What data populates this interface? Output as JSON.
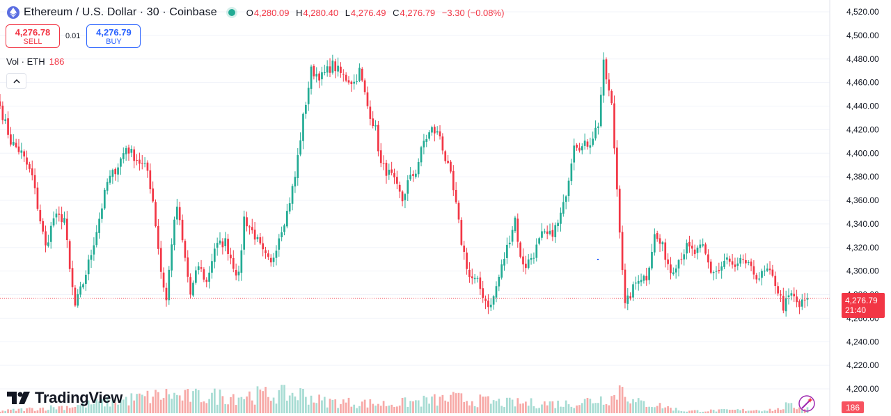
{
  "header": {
    "symbol": "Ethereum / U.S. Dollar · 30 · Coinbase",
    "ohlc": {
      "o_label": "O",
      "o": "4,280.09",
      "h_label": "H",
      "h": "4,280.40",
      "l_label": "L",
      "l": "4,276.49",
      "c_label": "C",
      "c": "4,276.79",
      "change": "−3.30 (−0.08%)"
    }
  },
  "trade": {
    "sell_price": "4,276.78",
    "sell_label": "SELL",
    "spread": "0.01",
    "buy_price": "4,276.79",
    "buy_label": "BUY"
  },
  "volume_legend": {
    "label": "Vol · ETH",
    "value": "186"
  },
  "brand": {
    "name": "TradingView"
  },
  "price_line": {
    "price": "4,276.79",
    "countdown": "21:40"
  },
  "volume_label": "186",
  "colors": {
    "up": "#22ab94",
    "down": "#f23645",
    "vol_up": "#a7dcd3",
    "vol_down": "#f7a9a7",
    "grid": "#f0f3fa"
  },
  "icons": [
    "ethereum-icon",
    "live-dot-icon",
    "chevron-up-icon",
    "tradingview-logo-icon",
    "magic-wand-icon"
  ],
  "chart_data": {
    "type": "candlestick",
    "interval": "30",
    "y_ticks": [
      "4,520.00",
      "4,500.00",
      "4,480.00",
      "4,460.00",
      "4,440.00",
      "4,420.00",
      "4,400.00",
      "4,380.00",
      "4,360.00",
      "4,340.00",
      "4,320.00",
      "4,300.00",
      "4,280.00",
      "4,260.00",
      "4,240.00",
      "4,220.00",
      "4,200.00"
    ],
    "ylim": [
      4196,
      4524
    ],
    "grid": true,
    "current_price": 4276.79,
    "close_anchors": [
      [
        0,
        4440
      ],
      [
        4,
        4410
      ],
      [
        8,
        4400
      ],
      [
        12,
        4380
      ],
      [
        14,
        4355
      ],
      [
        17,
        4320
      ],
      [
        20,
        4345
      ],
      [
        24,
        4345
      ],
      [
        26,
        4300
      ],
      [
        28,
        4270
      ],
      [
        31,
        4290
      ],
      [
        34,
        4315
      ],
      [
        37,
        4345
      ],
      [
        40,
        4375
      ],
      [
        44,
        4390
      ],
      [
        47,
        4405
      ],
      [
        51,
        4395
      ],
      [
        55,
        4385
      ],
      [
        57,
        4360
      ],
      [
        60,
        4300
      ],
      [
        62,
        4275
      ],
      [
        64,
        4325
      ],
      [
        66,
        4355
      ],
      [
        69,
        4310
      ],
      [
        71,
        4280
      ],
      [
        74,
        4305
      ],
      [
        77,
        4290
      ],
      [
        80,
        4320
      ],
      [
        84,
        4325
      ],
      [
        87,
        4305
      ],
      [
        89,
        4295
      ],
      [
        91,
        4345
      ],
      [
        95,
        4330
      ],
      [
        98,
        4315
      ],
      [
        101,
        4305
      ],
      [
        104,
        4330
      ],
      [
        107,
        4350
      ],
      [
        110,
        4380
      ],
      [
        113,
        4430
      ],
      [
        116,
        4470
      ],
      [
        120,
        4465
      ],
      [
        124,
        4475
      ],
      [
        128,
        4465
      ],
      [
        132,
        4460
      ],
      [
        134,
        4470
      ],
      [
        137,
        4440
      ],
      [
        140,
        4420
      ],
      [
        142,
        4390
      ],
      [
        146,
        4380
      ],
      [
        150,
        4360
      ],
      [
        152,
        4375
      ],
      [
        155,
        4385
      ],
      [
        158,
        4410
      ],
      [
        161,
        4420
      ],
      [
        164,
        4415
      ],
      [
        166,
        4395
      ],
      [
        168,
        4380
      ],
      [
        170,
        4355
      ],
      [
        172,
        4325
      ],
      [
        175,
        4295
      ],
      [
        178,
        4290
      ],
      [
        181,
        4275
      ],
      [
        183,
        4270
      ],
      [
        186,
        4295
      ],
      [
        189,
        4320
      ],
      [
        192,
        4345
      ],
      [
        194,
        4310
      ],
      [
        196,
        4305
      ],
      [
        199,
        4315
      ],
      [
        202,
        4330
      ],
      [
        205,
        4330
      ],
      [
        208,
        4340
      ],
      [
        210,
        4355
      ],
      [
        212,
        4380
      ],
      [
        214,
        4410
      ],
      [
        217,
        4405
      ],
      [
        220,
        4410
      ],
      [
        223,
        4425
      ],
      [
        225,
        4475
      ],
      [
        228,
        4440
      ],
      [
        230,
        4370
      ],
      [
        233,
        4270
      ],
      [
        235,
        4280
      ],
      [
        238,
        4295
      ],
      [
        241,
        4295
      ],
      [
        244,
        4330
      ],
      [
        247,
        4320
      ],
      [
        250,
        4300
      ],
      [
        253,
        4310
      ],
      [
        256,
        4320
      ],
      [
        259,
        4315
      ],
      [
        262,
        4320
      ],
      [
        265,
        4300
      ],
      [
        268,
        4300
      ],
      [
        271,
        4310
      ],
      [
        274,
        4300
      ],
      [
        277,
        4310
      ],
      [
        280,
        4300
      ],
      [
        283,
        4295
      ],
      [
        286,
        4300
      ],
      [
        289,
        4290
      ],
      [
        292,
        4270
      ],
      [
        295,
        4280
      ],
      [
        298,
        4270
      ],
      [
        300,
        4275
      ],
      [
        301,
        4276.79
      ]
    ],
    "volume_peaks": [
      [
        0,
        6
      ],
      [
        28,
        20
      ],
      [
        60,
        48
      ],
      [
        64,
        52
      ],
      [
        66,
        44
      ],
      [
        113,
        52
      ],
      [
        120,
        32
      ],
      [
        145,
        25
      ],
      [
        170,
        40
      ],
      [
        175,
        36
      ],
      [
        189,
        28
      ],
      [
        212,
        26
      ],
      [
        229,
        45
      ],
      [
        232,
        78
      ],
      [
        236,
        30
      ],
      [
        244,
        24
      ],
      [
        255,
        6
      ],
      [
        290,
        10
      ],
      [
        293,
        20
      ],
      [
        301,
        14
      ]
    ]
  }
}
